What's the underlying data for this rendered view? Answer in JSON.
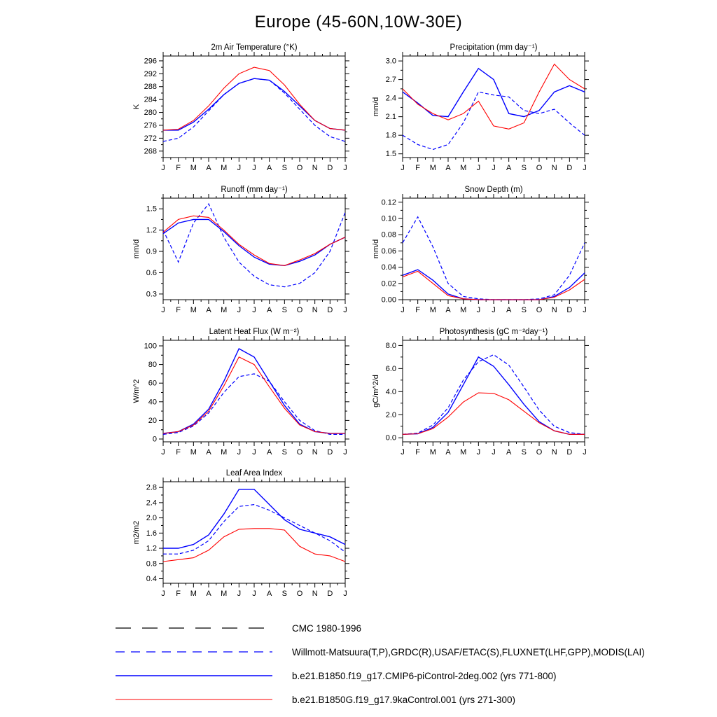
{
  "page": {
    "title": "Europe (45-60N,10W-30E)"
  },
  "months": [
    "J",
    "F",
    "M",
    "A",
    "M",
    "J",
    "J",
    "A",
    "S",
    "O",
    "N",
    "D",
    "J"
  ],
  "colors": {
    "model_blue": "#0000ff",
    "model_red": "#ff0000",
    "obs_black": "#000000"
  },
  "chart_data": [
    {
      "type": "line",
      "title": "2m Air Temperature (°K)",
      "ylabel": "K",
      "yrange": [
        266,
        297.5
      ],
      "tick_start": 268,
      "tick_end": 296,
      "tick_step": 4,
      "decimals": 0,
      "series": [
        {
          "name": "obs-dashed",
          "color": "#0000ff",
          "dash": "5,3",
          "width": 1.2,
          "values": [
            271.0,
            272.0,
            275.5,
            280.5,
            285.5,
            289.0,
            290.5,
            290.0,
            286.0,
            281.0,
            276.0,
            272.5,
            271.0
          ]
        },
        {
          "name": "piControl",
          "color": "#0000ff",
          "dash": "",
          "width": 1.4,
          "values": [
            274.5,
            274.5,
            277.0,
            281.0,
            285.5,
            289.0,
            290.5,
            290.0,
            286.5,
            282.0,
            277.5,
            275.0,
            274.5
          ]
        },
        {
          "name": "9kaControl",
          "color": "#ff0000",
          "dash": "",
          "width": 1.1,
          "values": [
            274.5,
            274.8,
            277.5,
            282.0,
            287.5,
            292.0,
            294.0,
            293.0,
            288.5,
            282.5,
            277.5,
            275.0,
            274.5
          ]
        }
      ]
    },
    {
      "type": "line",
      "title": "Precipitation (mm day⁻¹)",
      "ylabel": "mm/d",
      "yrange": [
        1.44,
        3.08
      ],
      "tick_start": 1.5,
      "tick_end": 3.0,
      "tick_step": 0.3,
      "decimals": 1,
      "series": [
        {
          "name": "obs-dashed",
          "color": "#0000ff",
          "dash": "5,3",
          "width": 1.2,
          "values": [
            1.8,
            1.65,
            1.57,
            1.65,
            2.0,
            2.5,
            2.45,
            2.42,
            2.2,
            2.15,
            2.22,
            2.0,
            1.8
          ]
        },
        {
          "name": "piControl",
          "color": "#0000ff",
          "dash": "",
          "width": 1.4,
          "values": [
            2.5,
            2.32,
            2.12,
            2.1,
            2.5,
            2.88,
            2.7,
            2.15,
            2.1,
            2.2,
            2.5,
            2.6,
            2.5
          ]
        },
        {
          "name": "9kaControl",
          "color": "#ff0000",
          "dash": "",
          "width": 1.1,
          "values": [
            2.55,
            2.3,
            2.15,
            2.05,
            2.15,
            2.35,
            1.95,
            1.9,
            2.0,
            2.5,
            2.95,
            2.7,
            2.55
          ]
        }
      ]
    },
    {
      "type": "line",
      "title": "Runoff (mm day⁻¹)",
      "ylabel": "mm/d",
      "yrange": [
        0.22,
        1.65
      ],
      "tick_start": 0.3,
      "tick_end": 1.5,
      "tick_step": 0.3,
      "decimals": 1,
      "series": [
        {
          "name": "obs-dashed",
          "color": "#0000ff",
          "dash": "5,3",
          "width": 1.2,
          "values": [
            1.2,
            0.75,
            1.3,
            1.57,
            1.1,
            0.75,
            0.55,
            0.43,
            0.4,
            0.45,
            0.6,
            0.9,
            1.45
          ]
        },
        {
          "name": "piControl",
          "color": "#0000ff",
          "dash": "",
          "width": 1.4,
          "values": [
            1.15,
            1.3,
            1.35,
            1.35,
            1.18,
            0.98,
            0.82,
            0.72,
            0.7,
            0.76,
            0.85,
            1.0,
            1.1
          ]
        },
        {
          "name": "9kaControl",
          "color": "#ff0000",
          "dash": "",
          "width": 1.1,
          "values": [
            1.17,
            1.35,
            1.4,
            1.38,
            1.2,
            1.0,
            0.85,
            0.73,
            0.7,
            0.78,
            0.87,
            1.0,
            1.1
          ]
        }
      ]
    },
    {
      "type": "line",
      "title": "Snow Depth (m)",
      "ylabel": "mm/d",
      "yrange": [
        0.0,
        0.125
      ],
      "tick_start": 0.0,
      "tick_end": 0.12,
      "tick_step": 0.02,
      "decimals": 2,
      "series": [
        {
          "name": "obs-dashed",
          "color": "#0000ff",
          "dash": "5,3",
          "width": 1.2,
          "values": [
            0.07,
            0.102,
            0.065,
            0.02,
            0.004,
            0.001,
            0.0,
            0.0,
            0.0,
            0.001,
            0.006,
            0.03,
            0.07
          ]
        },
        {
          "name": "piControl",
          "color": "#0000ff",
          "dash": "",
          "width": 1.4,
          "values": [
            0.03,
            0.037,
            0.024,
            0.007,
            0.001,
            0.0,
            0.0,
            0.0,
            0.0,
            0.0,
            0.004,
            0.015,
            0.033
          ]
        },
        {
          "name": "9kaControl",
          "color": "#ff0000",
          "dash": "",
          "width": 1.1,
          "values": [
            0.028,
            0.035,
            0.02,
            0.005,
            0.001,
            0.0,
            0.0,
            0.0,
            0.0,
            0.0,
            0.003,
            0.012,
            0.025
          ]
        }
      ]
    },
    {
      "type": "line",
      "title": "Latent Heat Flux (W m⁻²)",
      "ylabel": "W/m^2",
      "yrange": [
        -3,
        106
      ],
      "tick_start": 0,
      "tick_end": 100,
      "tick_step": 20,
      "decimals": 0,
      "series": [
        {
          "name": "obs-dashed",
          "color": "#0000ff",
          "dash": "5,3",
          "width": 1.2,
          "values": [
            5,
            7,
            14,
            28,
            50,
            67,
            70,
            62,
            40,
            20,
            9,
            5,
            5
          ]
        },
        {
          "name": "piControl",
          "color": "#0000ff",
          "dash": "",
          "width": 1.4,
          "values": [
            6,
            8,
            16,
            32,
            62,
            97,
            88,
            62,
            36,
            16,
            8,
            6,
            6
          ]
        },
        {
          "name": "9kaControl",
          "color": "#ff0000",
          "dash": "",
          "width": 1.1,
          "values": [
            6,
            8,
            15,
            30,
            57,
            88,
            80,
            56,
            33,
            15,
            8,
            6,
            6
          ]
        }
      ]
    },
    {
      "type": "line",
      "title": "Photosynthesis (gC m⁻²day⁻¹)",
      "ylabel": "gC/m^2/d",
      "yrange": [
        -0.35,
        8.45
      ],
      "tick_start": 0.0,
      "tick_end": 8.0,
      "tick_step": 2.0,
      "decimals": 1,
      "series": [
        {
          "name": "obs-dashed",
          "color": "#0000ff",
          "dash": "5,3",
          "width": 1.2,
          "values": [
            0.3,
            0.4,
            1.1,
            2.6,
            5.0,
            6.6,
            7.2,
            6.3,
            4.4,
            2.4,
            1.0,
            0.45,
            0.3
          ]
        },
        {
          "name": "piControl",
          "color": "#0000ff",
          "dash": "",
          "width": 1.4,
          "values": [
            0.3,
            0.35,
            0.9,
            2.2,
            4.6,
            7.0,
            6.2,
            4.6,
            2.9,
            1.4,
            0.6,
            0.3,
            0.3
          ]
        },
        {
          "name": "9kaControl",
          "color": "#ff0000",
          "dash": "",
          "width": 1.1,
          "values": [
            0.3,
            0.35,
            0.8,
            1.8,
            3.1,
            3.9,
            3.85,
            3.3,
            2.3,
            1.3,
            0.6,
            0.3,
            0.3
          ]
        }
      ]
    },
    {
      "type": "line",
      "title": "Leaf Area Index",
      "ylabel": "m2/m2",
      "yrange": [
        0.28,
        2.95
      ],
      "tick_start": 0.4,
      "tick_end": 2.8,
      "tick_step": 0.4,
      "decimals": 1,
      "series": [
        {
          "name": "obs-dashed",
          "color": "#0000ff",
          "dash": "5,3",
          "width": 1.2,
          "values": [
            1.05,
            1.05,
            1.15,
            1.4,
            1.9,
            2.3,
            2.35,
            2.2,
            2.0,
            1.8,
            1.6,
            1.4,
            1.1
          ]
        },
        {
          "name": "piControl",
          "color": "#0000ff",
          "dash": "",
          "width": 1.4,
          "values": [
            1.2,
            1.2,
            1.3,
            1.55,
            2.1,
            2.75,
            2.75,
            2.35,
            1.95,
            1.7,
            1.6,
            1.5,
            1.3
          ]
        },
        {
          "name": "9kaControl",
          "color": "#ff0000",
          "dash": "",
          "width": 1.1,
          "values": [
            0.85,
            0.9,
            0.95,
            1.15,
            1.5,
            1.7,
            1.72,
            1.72,
            1.68,
            1.25,
            1.05,
            1.0,
            0.85
          ]
        }
      ]
    }
  ],
  "legend": {
    "items": [
      {
        "label": "CMC 1980-1996",
        "color": "#000000",
        "dash": "22,16",
        "width": 1.2
      },
      {
        "label": "Willmott-Matsuura(T,P),GRDC(R),USAF/ETAC(S),FLUXNET(LHF,GPP),MODIS(LAI)",
        "color": "#0000ff",
        "dash": "13,9",
        "width": 1.2
      },
      {
        "label": "b.e21.B1850.f19_g17.CMIP6-piControl-2deg.002 (yrs 771-800)",
        "color": "#0000ff",
        "dash": "",
        "width": 1.5
      },
      {
        "label": "b.e21.B1850G.f19_g17.9kaControl.001 (yrs 271-300)",
        "color": "#ff0000",
        "dash": "",
        "width": 1.0
      }
    ]
  }
}
